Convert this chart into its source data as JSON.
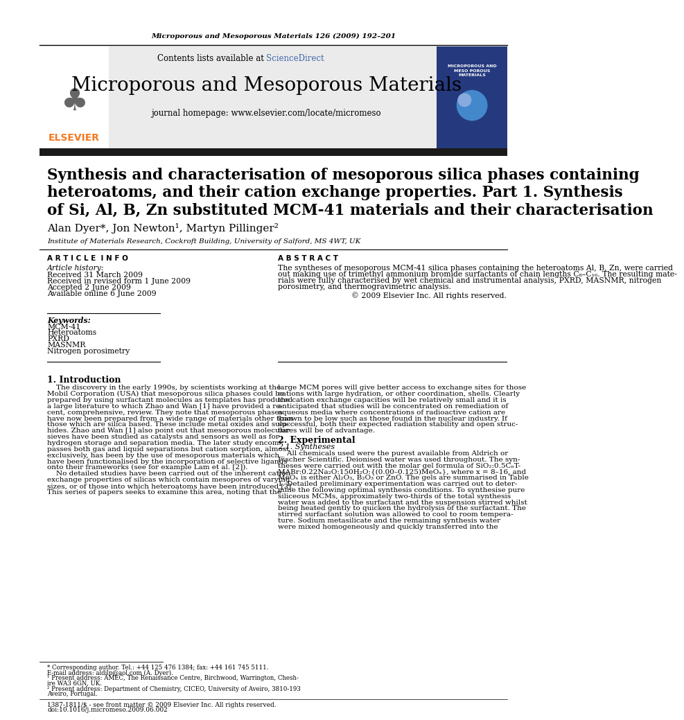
{
  "journal_header": "Microporous and Mesoporous Materials 126 (2009) 192–201",
  "journal_name": "Microporous and Mesoporous Materials",
  "journal_url": "journal homepage: www.elsevier.com/locate/micromeso",
  "contents_text": "Contents lists available at ScienceDirect",
  "paper_title_line1": "Synthesis and characterisation of mesoporous silica phases containing",
  "paper_title_line2": "heteroatoms, and their cation exchange properties. Part 1. Synthesis",
  "paper_title_line3": "of Si, Al, B, Zn substituted MCM-41 materials and their characterisation",
  "authors": "Alan Dyer*, Jon Newton¹, Martyn Pillinger²",
  "affiliation": "Institute of Materials Research, Cockroft Building, University of Salford, MS 4WT, UK",
  "article_info_label": "A R T I C L E  I N F O",
  "abstract_label": "A B S T R A C T",
  "article_history_label": "Article history:",
  "received": "Received 31 March 2009",
  "received_revised": "Received in revised form 1 June 2009",
  "accepted": "Accepted 2 June 2009",
  "available": "Available online 6 June 2009",
  "keywords_label": "Keywords:",
  "keywords": [
    "MCM-41",
    "Heteroatoms",
    "PXRD",
    "MASNMR",
    "Nitrogen porosimetry"
  ],
  "abstract_text": "The syntheses of mesoporous MCM-41 silica phases containing the heteroatoms Al, B, Zn, were carried\nout making use of trimethyl ammonium bromide surfactants of chain lengths C₈–C₁₆. The resulting mate-\nrials were fully characterised by wet chemical and instrumental analysis, PXRD, MASNMR, nitrogen\nporosimetry, and thermogravimetric analysis.",
  "copyright": "© 2009 Elsevier Inc. All rights reserved.",
  "intro_heading": "1. Introduction",
  "intro_col1_lines": [
    "    The discovery in the early 1990s, by scientists working at the",
    "Mobil Corporation (USA) that mesoporous silica phases could be",
    "prepared by using surfactant molecules as templates has produced",
    "a large literature to which Zhao and Wan [1] have provided a re-",
    "cent, comprehensive, review. They note that mesoporous phases",
    "have now been prepared from a wide range of materials other than",
    "those which are silica based. These include metal oxides and sulp-",
    "hides. Zhao and Wan [1] also point out that mesoporous molecular",
    "sieves have been studied as catalysts and sensors as well as for",
    "hydrogen storage and separation media. The later study encom-",
    "passes both gas and liquid separations but cation sorption, almost",
    "exclusively, has been by the use of mesoporous materials which",
    "have been functionalised by the incorporation of selective ligands",
    "onto their frameworks (see for example Lam et al. [2]).",
    "    No detailed studies have been carried out of the inherent cation",
    "exchange properties of silicas which contain mesopores of varying",
    "sizes, or of those into which heteroatoms have been introduced [3].",
    "This series of papers seeks to examine this area, noting that the"
  ],
  "intro_col2_lines": [
    "large MCM pores will give better access to exchange sites for those",
    "cations with large hydration, or other coordination, shells. Clearly",
    "the cation exchange capacities will be relatively small and it is",
    "anticipated that studies will be concentrated on remediation of",
    "aqueous media where concentrations of radioactive cation are",
    "known to be low such as those found in the nuclear industry. If",
    "successful, both their expected radiation stability and open struc-",
    "tures will be of advantage."
  ],
  "experimental_heading": "2. Experimental",
  "experimental_sub": "2.1. Syntheses",
  "experimental_col2_lines": [
    "    All chemicals used were the purest available from Aldrich or",
    "Fischer Scientific. Deionised water was used throughout. The syn-",
    "theses were carried out with the molar gel formula of SiO₂:0.5CₙT-",
    "MABr:0.22Na₂O:150H₂O:{(0.00–0.125)MeOₓ}, where x = 8–16, and",
    "MeOₓ is either Al₂O₃, B₂O₃ or ZnO. The gels are summarised in Table",
    "1. Detailed preliminary experimentation was carried out to deter-",
    "mine the following optimal synthesis conditions. To synthesise pure",
    "siliceous MCMs, approximately two-thirds of the total synthesis",
    "water was added to the surfactant and the suspension stirred whilst",
    "being heated gently to quicken the hydrolysis of the surfactant. The",
    "stirred surfactant solution was allowed to cool to room tempera-",
    "ture. Sodium metasilicate and the remaining synthesis water",
    "were mixed homogeneously and quickly transferred into the"
  ],
  "footnote_star": "* Corresponding author. Tel.: +44 125 476 1384; fax: +44 161 745 5111.",
  "footnote_email": "E-mail address: aldilp@aol.com (A. Dyer).",
  "footnote1": "¹ Present address: AMEC, The Renaissance Centre, Birchwood, Warrington, Chesh-",
  "footnote1b": "ire WA3 6GN, UK.",
  "footnote2": "² Present address: Department of Chemistry, CICEO, University of Aveiro, 3810-193",
  "footnote2b": "Aveiro, Portugal.",
  "issn": "1387-1811/$ - see front matter © 2009 Elsevier Inc. All rights reserved.",
  "doi": "doi:10.1016/j.micromeso.2009.06.002",
  "bg_color": "#ffffff",
  "header_bg": "#e8e8e8",
  "dark_bar_color": "#1a1a1a",
  "elsevier_orange": "#f47920",
  "sciencedirect_blue": "#4169aa"
}
